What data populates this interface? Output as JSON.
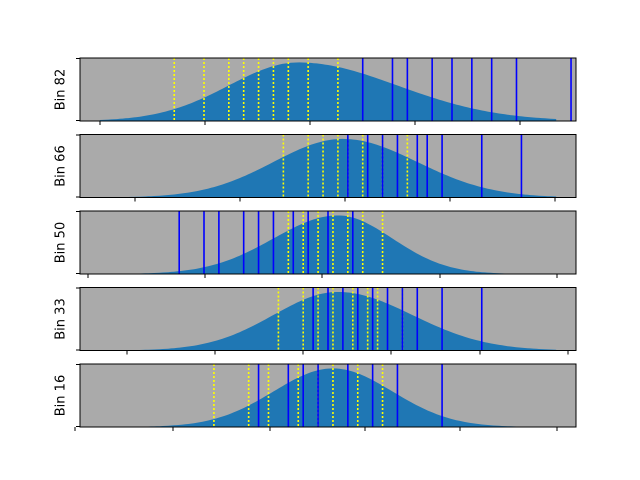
{
  "chart_data": [
    {
      "type": "area",
      "ylabel": "Bin 82",
      "xlim": [
        0,
        1
      ],
      "density": {
        "center": 0.44,
        "spread_left": 0.14,
        "spread_right": 0.2,
        "peak": 1.0
      },
      "yellow_dotted_lines": [
        0.19,
        0.25,
        0.3,
        0.33,
        0.36,
        0.39,
        0.42,
        0.46,
        0.52
      ],
      "blue_solid_lines": [
        0.57,
        0.63,
        0.66,
        0.71,
        0.75,
        0.79,
        0.83,
        0.88,
        0.99
      ]
    },
    {
      "type": "area",
      "ylabel": "Bin 66",
      "xlim": [
        0,
        1
      ],
      "density": {
        "center": 0.53,
        "spread_left": 0.14,
        "spread_right": 0.15,
        "peak": 1.0
      },
      "yellow_dotted_lines": [
        0.41,
        0.46,
        0.49,
        0.52,
        0.54,
        0.57,
        0.61,
        0.66
      ],
      "blue_solid_lines": [
        0.54,
        0.58,
        0.61,
        0.64,
        0.68,
        0.7,
        0.73,
        0.81,
        0.89
      ]
    },
    {
      "type": "area",
      "ylabel": "Bin 50",
      "xlim": [
        0,
        1
      ],
      "density": {
        "center": 0.52,
        "spread_left": 0.13,
        "spread_right": 0.11,
        "peak": 1.0
      },
      "yellow_dotted_lines": [
        0.42,
        0.45,
        0.48,
        0.51,
        0.54,
        0.57,
        0.61
      ],
      "blue_solid_lines": [
        0.2,
        0.25,
        0.28,
        0.33,
        0.36,
        0.39,
        0.43,
        0.46,
        0.5,
        0.55
      ]
    },
    {
      "type": "area",
      "ylabel": "Bin 33",
      "xlim": [
        0,
        1
      ],
      "density": {
        "center": 0.52,
        "spread_left": 0.13,
        "spread_right": 0.15,
        "peak": 1.0
      },
      "yellow_dotted_lines": [
        0.4,
        0.45,
        0.48,
        0.51,
        0.55,
        0.58,
        0.6,
        0.65
      ],
      "blue_solid_lines": [
        0.47,
        0.5,
        0.53,
        0.56,
        0.59,
        0.62,
        0.65,
        0.68,
        0.73,
        0.81
      ]
    },
    {
      "type": "area",
      "ylabel": "Bin 16",
      "xlim": [
        0,
        1
      ],
      "density": {
        "center": 0.51,
        "spread_left": 0.12,
        "spread_right": 0.12,
        "peak": 1.0
      },
      "yellow_dotted_lines": [
        0.27,
        0.34,
        0.38,
        0.44,
        0.48,
        0.51,
        0.56,
        0.61
      ],
      "blue_solid_lines": [
        0.36,
        0.42,
        0.45,
        0.48,
        0.54,
        0.59,
        0.64,
        0.73
      ]
    }
  ],
  "colors": {
    "panel_background": "#aaaaaa",
    "density_fill": "#1f77b4",
    "dotted_lines": "#ffff00",
    "solid_lines": "#0000ff",
    "axes": "#000000"
  }
}
